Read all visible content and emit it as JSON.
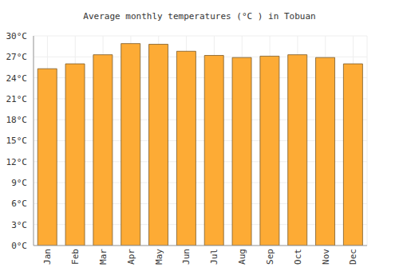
{
  "chart_data": {
    "type": "bar",
    "title": "Average monthly temperatures (°C ) in Tobuan",
    "categories": [
      "Jan",
      "Feb",
      "Mar",
      "Apr",
      "May",
      "Jun",
      "Jul",
      "Aug",
      "Sep",
      "Oct",
      "Nov",
      "Dec"
    ],
    "values": [
      25.3,
      26.0,
      27.3,
      28.9,
      28.8,
      27.8,
      27.2,
      26.9,
      27.1,
      27.3,
      26.9,
      26.0
    ],
    "color": "#fdab35",
    "ylim": [
      0,
      30
    ],
    "yticks": [
      {
        "value": 0,
        "label": "0°C"
      },
      {
        "value": 3,
        "label": "3°C"
      },
      {
        "value": 6,
        "label": "6°C"
      },
      {
        "value": 9,
        "label": "9°C"
      },
      {
        "value": 12,
        "label": "12°C"
      },
      {
        "value": 15,
        "label": "15°C"
      },
      {
        "value": 18,
        "label": "18°C"
      },
      {
        "value": 21,
        "label": "21°C"
      },
      {
        "value": 24,
        "label": "24°C"
      },
      {
        "value": 27,
        "label": "27°C"
      },
      {
        "value": 30,
        "label": "30°C"
      }
    ],
    "grid": true
  }
}
